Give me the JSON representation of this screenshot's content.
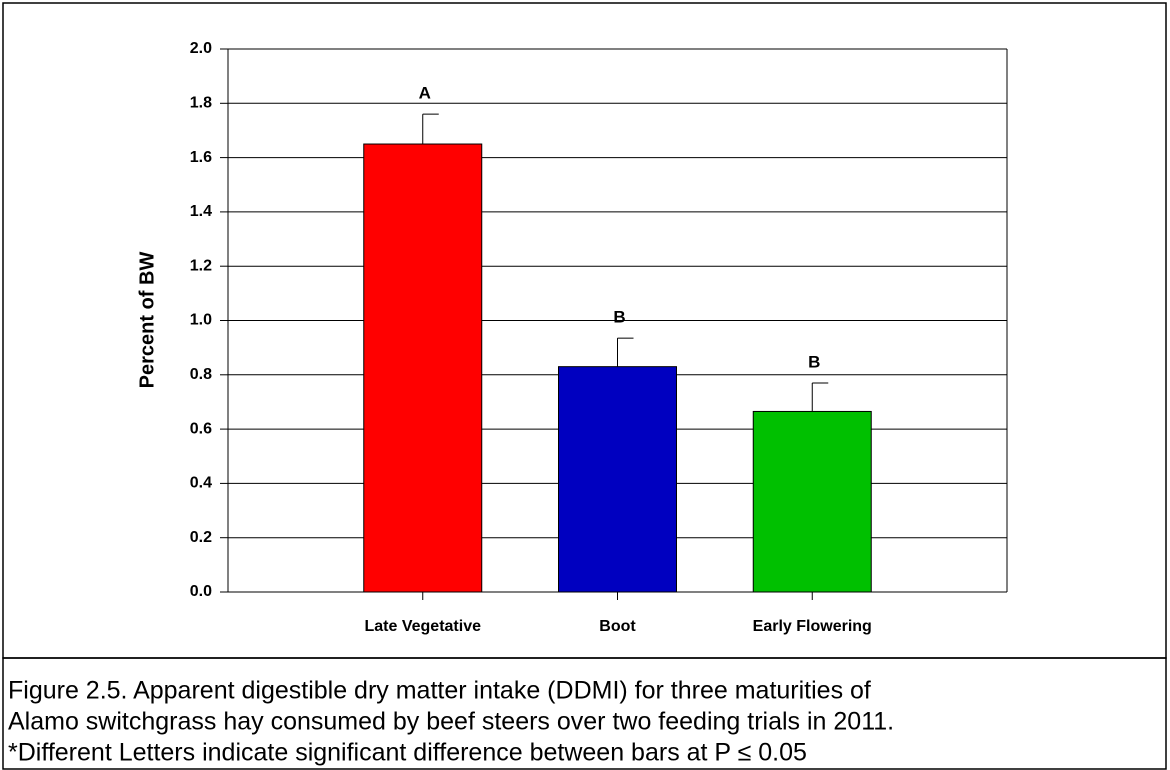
{
  "chart_data": {
    "type": "bar",
    "y_label": "Percent of BW",
    "categories": [
      "Late Vegetative",
      "Boot",
      "Early Flowering"
    ],
    "values": [
      1.65,
      0.83,
      0.665
    ],
    "error": [
      0.11,
      0.105,
      0.105
    ],
    "letters": [
      "A",
      "B",
      "B"
    ],
    "colors": [
      "#ff0000",
      "#0000c0",
      "#00c000"
    ],
    "ylim": [
      0,
      2
    ],
    "yticks": [
      {
        "value": 0,
        "label": "0.0"
      },
      0.2,
      0.4,
      0.6,
      0.8,
      {
        "value": 1,
        "label": "1.0"
      },
      1.2,
      1.4,
      1.6,
      1.8,
      {
        "value": 2,
        "label": "2.0"
      }
    ],
    "grid": true,
    "caption": [
      "Figure 2.5.  Apparent digestible dry matter intake (DDMI) for three maturities of",
      "Alamo switchgrass hay consumed by beef steers over two feeding trials in 2011.",
      "*Different Letters indicate significant difference between bars at P ≤ 0.05"
    ]
  }
}
